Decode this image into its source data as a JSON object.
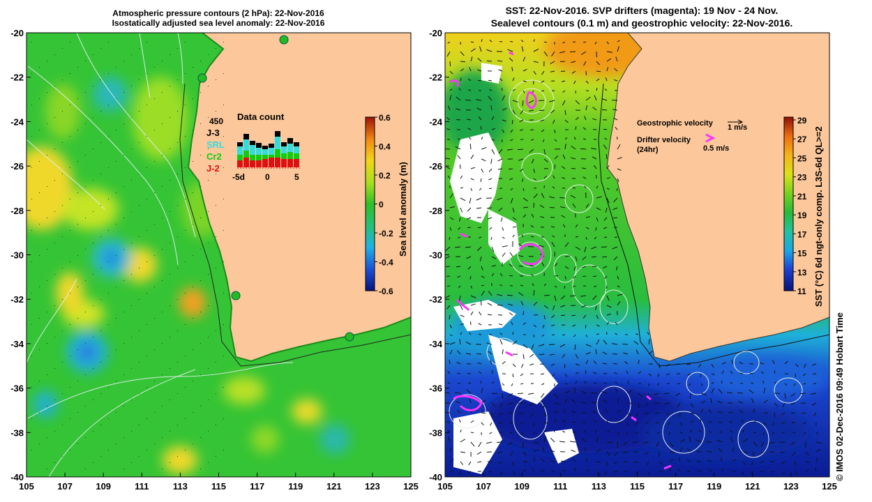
{
  "left_panel": {
    "title_line1": "Atmospheric pressure contours (2 hPa): 22-Nov-2016",
    "title_line2": "Isostatically adjusted sea level anomaly: 22-Nov-2016",
    "colorbar_label": "Sea level anomaly (m)",
    "colorbar_ticks": [
      "0.6",
      "0.4",
      "0.2",
      "0",
      "-0.2",
      "-0.4",
      "-0.6"
    ],
    "inset": {
      "title": "Data count",
      "max_label": "450",
      "legend": [
        {
          "label": "J-3",
          "color": "#000000"
        },
        {
          "label": "SRL",
          "color": "#33dddd"
        },
        {
          "label": "Cr2",
          "color": "#11cc11"
        },
        {
          "label": "J-2",
          "color": "#dd1111"
        }
      ],
      "x_ticks": [
        "-5d",
        "0",
        "5"
      ]
    }
  },
  "right_panel": {
    "title_line1": "SST: 22-Nov-2016. SVP drifters (magenta): 19 Nov - 24 Nov.",
    "title_line2": "Sealevel contours (0.1 m) and geostrophic velocity: 22-Nov-2016.",
    "colorbar_label": "SST (°C) 6d ngt-only comp. L3S-6d QL>=2",
    "colorbar_ticks": [
      "29",
      "27",
      "25",
      "23",
      "21",
      "19",
      "17",
      "15",
      "13",
      "11"
    ],
    "geo_velocity_label": "Geostrophic velocity",
    "geo_velocity_scale": "1 m/s",
    "drifter_velocity_label": "Drifter velocity",
    "drifter_velocity_sub": "(24hr)",
    "drifter_velocity_scale": "0.5 m/s"
  },
  "y_ticks": [
    "-20",
    "-22",
    "-24",
    "-26",
    "-28",
    "-30",
    "-32",
    "-34",
    "-36",
    "-38",
    "-40"
  ],
  "x_ticks": [
    "105",
    "107",
    "109",
    "111",
    "113",
    "115",
    "117",
    "119",
    "121",
    "123",
    "125"
  ],
  "credit": "© IMOS 02-Dec-2016 09:49 Hobart Time",
  "colors": {
    "land": "#fcc79a",
    "drifter": "#ff33ff",
    "sea_mid": "#22bb33"
  }
}
